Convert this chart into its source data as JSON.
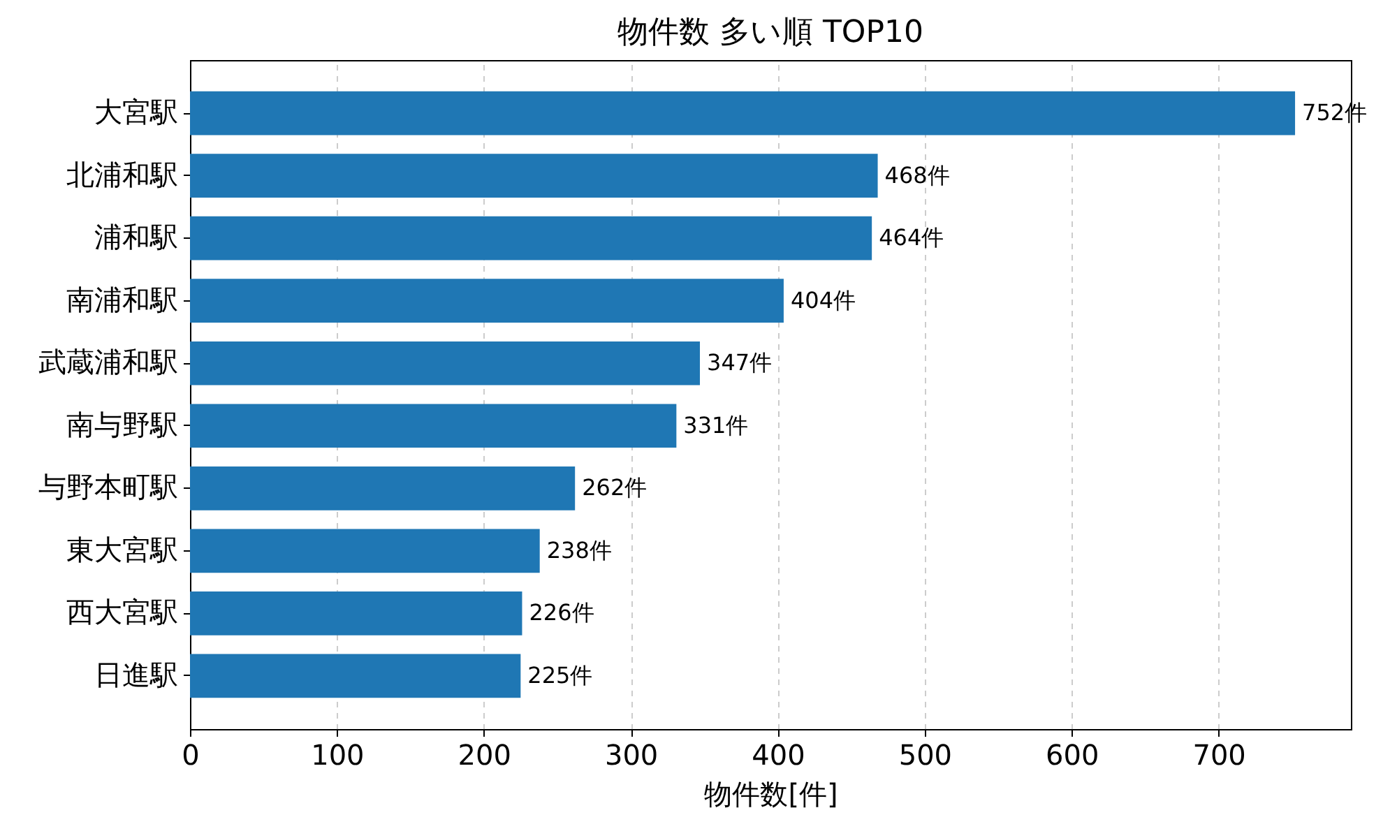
{
  "chart_data": {
    "type": "bar",
    "orientation": "horizontal",
    "title": "物件数 多い順 TOP10",
    "xlabel": "物件数[件]",
    "categories": [
      "大宮駅",
      "北浦和駅",
      "浦和駅",
      "南浦和駅",
      "武蔵浦和駅",
      "南与野駅",
      "与野本町駅",
      "東大宮駅",
      "西大宮駅",
      "日進駅"
    ],
    "values": [
      752,
      468,
      464,
      404,
      347,
      331,
      262,
      238,
      226,
      225
    ],
    "value_labels": [
      "752件",
      "468件",
      "464件",
      "404件",
      "347件",
      "331件",
      "262件",
      "238件",
      "226件",
      "225件"
    ],
    "color": "#1f77b4",
    "xlim": [
      0,
      790
    ],
    "xticks": [
      0,
      100,
      200,
      300,
      400,
      500,
      600,
      700
    ],
    "grid": "x"
  }
}
